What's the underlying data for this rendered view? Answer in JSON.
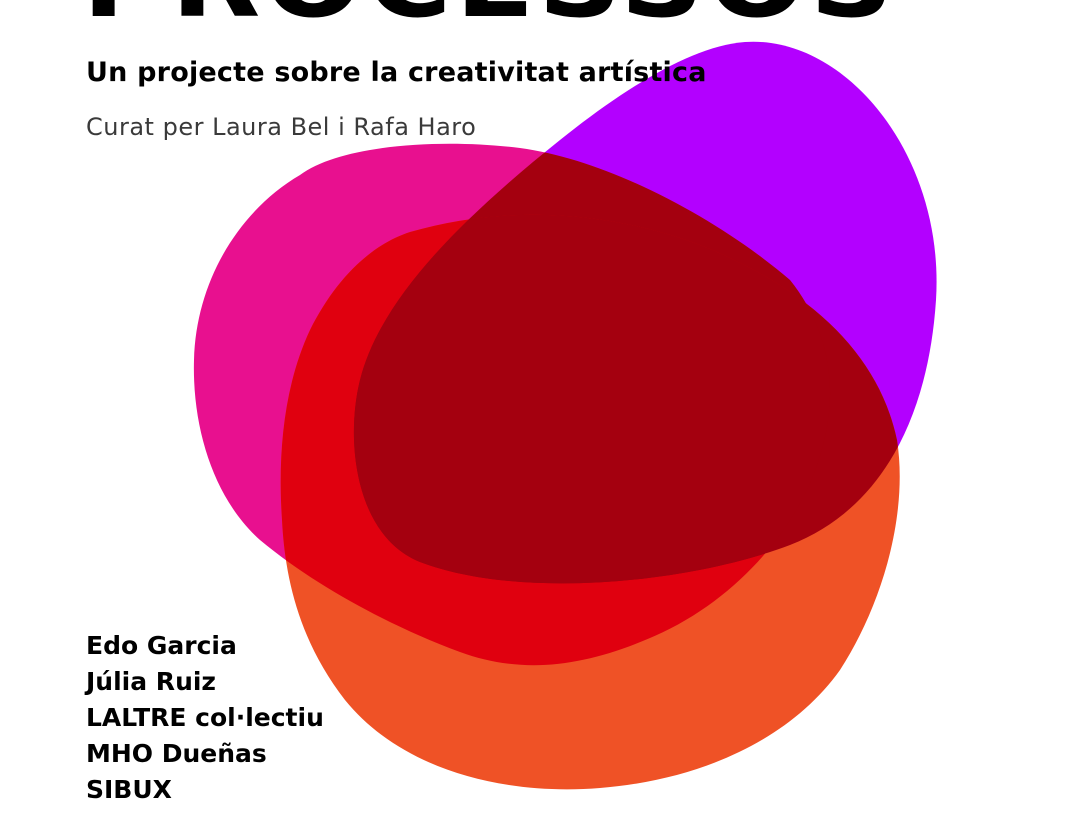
{
  "poster": {
    "title": "PROCESSOS",
    "subtitle": "Un projecte sobre la creativitat artística",
    "curators": "Curat per Laura Bel i Rafa Haro",
    "artists": [
      "Edo Garcia",
      "Júlia Ruiz",
      "LALTRE col·lectiu",
      "MHO Dueñas",
      "SIBUX"
    ]
  },
  "colors": {
    "background": "#ffffff",
    "text": "#000000",
    "purple_blob": "#b300ff",
    "magenta_blob": "#e8108f",
    "orange_blob": "#ef5226",
    "red_overlap": "#e0000f",
    "dark_overlap": "#a4000f"
  }
}
